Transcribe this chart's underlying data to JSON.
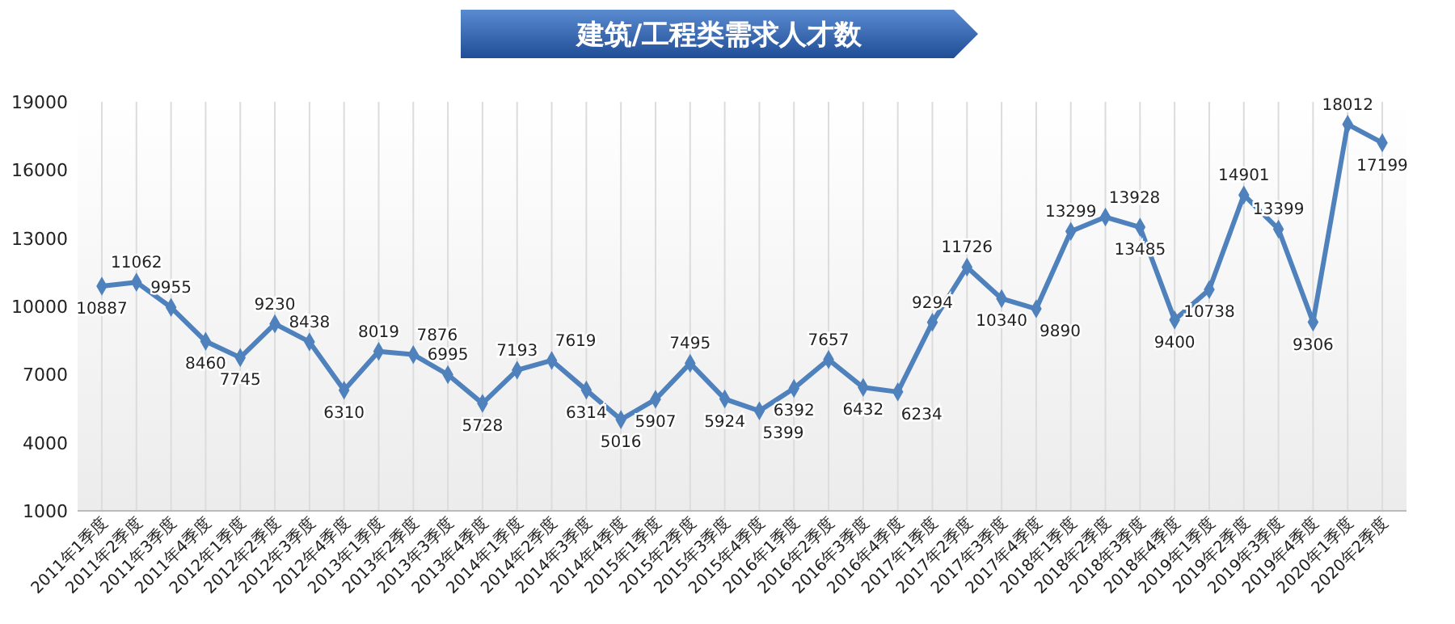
{
  "chart_data": {
    "type": "line",
    "title": "建筑/工程类需求人才数",
    "categories": [
      "2011年1季度",
      "2011年2季度",
      "2011年3季度",
      "2011年4季度",
      "2012年1季度",
      "2012年2季度",
      "2012年3季度",
      "2012年4季度",
      "2013年1季度",
      "2013年2季度",
      "2013年3季度",
      "2013年4季度",
      "2014年1季度",
      "2014年2季度",
      "2014年3季度",
      "2014年4季度",
      "2015年1季度",
      "2015年2季度",
      "2015年3季度",
      "2015年4季度",
      "2016年1季度",
      "2016年2季度",
      "2016年3季度",
      "2016年4季度",
      "2017年1季度",
      "2017年2季度",
      "2017年3季度",
      "2017年4季度",
      "2018年1季度",
      "2018年2季度",
      "2018年3季度",
      "2018年4季度",
      "2019年1季度",
      "2019年2季度",
      "2019年3季度",
      "2019年4季度",
      "2020年1季度",
      "2020年2季度"
    ],
    "series": [
      {
        "color": "#4f81bd",
        "values": [
          10887,
          11062,
          9955,
          8460,
          7745,
          9230,
          8438,
          6310,
          8019,
          7876,
          6995,
          5728,
          7193,
          7619,
          6314,
          5016,
          5907,
          7495,
          5924,
          5399,
          6392,
          7657,
          6432,
          6234,
          9294,
          11726,
          10340,
          9890,
          13299,
          13928,
          13485,
          9400,
          10738,
          14901,
          13399,
          9306,
          18012,
          17199
        ]
      }
    ],
    "ylim": [
      1000,
      19000
    ],
    "yticks": [
      1000,
      4000,
      7000,
      10000,
      13000,
      16000,
      19000
    ],
    "grid": "x",
    "marker": "diamond",
    "line_style": "solid",
    "data_labels": true
  }
}
